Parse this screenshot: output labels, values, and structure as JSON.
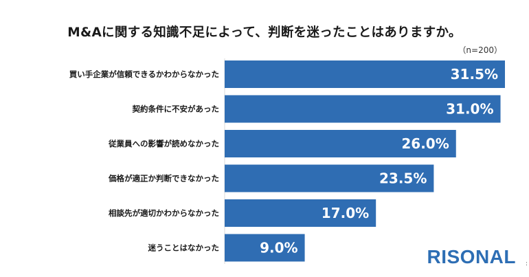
{
  "title": "M&Aに関する知識不足によって、判断を迷ったことはありますか。",
  "sample_note": "（n=200）",
  "brand": {
    "logo_text": "RISONAL",
    "color": "#2d6eb4"
  },
  "edge_mark": ":",
  "chart_data": {
    "type": "bar",
    "orientation": "horizontal",
    "categories": [
      "買い手企業が信頼できるかわからなかった",
      "契約条件に不安があった",
      "従業員への影響が読めなかった",
      "価格が適正か判断できなかった",
      "相談先が適切かわからなかった",
      "迷うことはなかった"
    ],
    "values": [
      31.5,
      31.0,
      26.0,
      23.5,
      17.0,
      9.0
    ],
    "value_labels": [
      "31.5%",
      "31.0%",
      "26.0%",
      "23.5%",
      "17.0%",
      "9.0%"
    ],
    "unit": "%",
    "bar_color": "#2f6db3",
    "xlim": [
      0,
      31.5
    ],
    "grid": false,
    "legend": "none"
  }
}
